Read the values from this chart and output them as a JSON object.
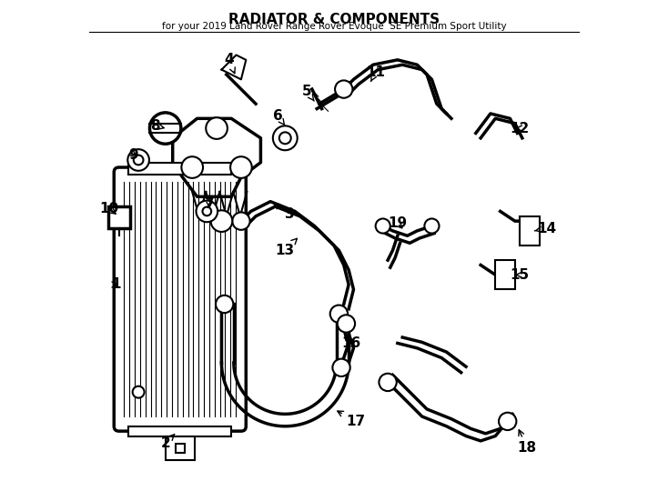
{
  "title": "RADIATOR & COMPONENTS",
  "subtitle": "for your 2019 Land Rover Range Rover Evoque  SE Premium Sport Utility",
  "background_color": "#ffffff",
  "line_color": "#000000",
  "text_color": "#000000",
  "label_fontsize": 11,
  "title_fontsize": 11
}
